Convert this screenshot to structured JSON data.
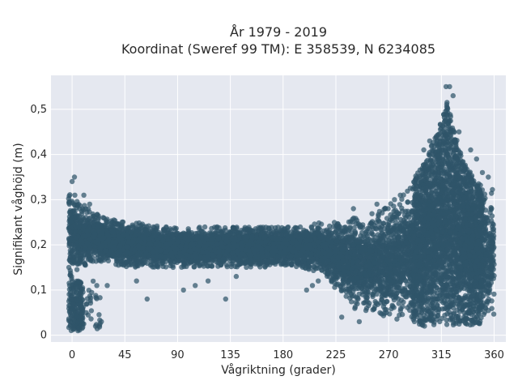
{
  "chart_data": {
    "type": "scatter",
    "title": "År 1979 - 2019",
    "subtitle": "Koordinat (Sweref 99 TM): E 358539, N 6234085",
    "xlabel": "Vågriktning (grader)",
    "ylabel": "Signifikant våghöjd (m)",
    "xlim": [
      -18,
      370
    ],
    "ylim": [
      -0.015,
      0.575
    ],
    "x_ticks": [
      0,
      45,
      90,
      135,
      180,
      225,
      270,
      315,
      360
    ],
    "x_tick_labels": [
      "0",
      "45",
      "90",
      "135",
      "180",
      "225",
      "270",
      "315",
      "360"
    ],
    "y_ticks": [
      0,
      0.1,
      0.2,
      0.3,
      0.4,
      0.5
    ],
    "y_tick_labels": [
      "0",
      "0,1",
      "0,2",
      "0,3",
      "0,4",
      "0,5"
    ],
    "grid": true,
    "marker_color": "#2f5569",
    "background_color": "#e5e8f0",
    "band": {
      "x": [
        0,
        5,
        10,
        15,
        20,
        30,
        45,
        60,
        75,
        90,
        105,
        120,
        135,
        150,
        165,
        180,
        195,
        210,
        225,
        240,
        255,
        270,
        285,
        300,
        305,
        310,
        315,
        320,
        325,
        330,
        335,
        340,
        345,
        350,
        355,
        360
      ],
      "low": [
        0.12,
        0.14,
        0.15,
        0.16,
        0.16,
        0.16,
        0.15,
        0.15,
        0.15,
        0.15,
        0.15,
        0.15,
        0.15,
        0.15,
        0.15,
        0.15,
        0.15,
        0.14,
        0.1,
        0.06,
        0.05,
        0.04,
        0.03,
        0.02,
        0.02,
        0.02,
        0.02,
        0.02,
        0.02,
        0.02,
        0.02,
        0.02,
        0.02,
        0.02,
        0.02,
        0.02
      ],
      "high": [
        0.33,
        0.3,
        0.29,
        0.28,
        0.27,
        0.26,
        0.25,
        0.25,
        0.24,
        0.24,
        0.24,
        0.24,
        0.24,
        0.24,
        0.24,
        0.24,
        0.24,
        0.25,
        0.25,
        0.26,
        0.27,
        0.29,
        0.32,
        0.38,
        0.41,
        0.44,
        0.48,
        0.52,
        0.46,
        0.42,
        0.39,
        0.36,
        0.34,
        0.33,
        0.32,
        0.33
      ]
    },
    "cluster_low_north": {
      "x_range": [
        -3,
        24
      ],
      "y_range": [
        0.01,
        0.12
      ]
    },
    "outliers": [
      {
        "x": 2,
        "y": 0.35
      },
      {
        "x": 0,
        "y": 0.34
      },
      {
        "x": 10,
        "y": 0.31
      },
      {
        "x": 15,
        "y": 0.29
      },
      {
        "x": 64,
        "y": 0.08
      },
      {
        "x": 95,
        "y": 0.1
      },
      {
        "x": 105,
        "y": 0.11
      },
      {
        "x": 116,
        "y": 0.12
      },
      {
        "x": 131,
        "y": 0.08
      },
      {
        "x": 140,
        "y": 0.13
      },
      {
        "x": 200,
        "y": 0.1
      },
      {
        "x": 205,
        "y": 0.11
      },
      {
        "x": 210,
        "y": 0.12
      },
      {
        "x": 230,
        "y": 0.04
      },
      {
        "x": 245,
        "y": 0.03
      },
      {
        "x": 300,
        "y": 0.41
      },
      {
        "x": 305,
        "y": 0.43
      },
      {
        "x": 322,
        "y": 0.55
      },
      {
        "x": 319,
        "y": 0.55
      },
      {
        "x": 325,
        "y": 0.53
      },
      {
        "x": 330,
        "y": 0.45
      },
      {
        "x": 340,
        "y": 0.41
      },
      {
        "x": 345,
        "y": 0.39
      },
      {
        "x": 350,
        "y": 0.36
      },
      {
        "x": 355,
        "y": 0.35
      },
      {
        "x": 280,
        "y": 0.31
      },
      {
        "x": 275,
        "y": 0.3
      },
      {
        "x": 260,
        "y": 0.29
      },
      {
        "x": 240,
        "y": 0.28
      },
      {
        "x": 30,
        "y": 0.11
      },
      {
        "x": 55,
        "y": 0.12
      },
      {
        "x": 12,
        "y": 0.05
      },
      {
        "x": 20,
        "y": 0.02
      },
      {
        "x": 25,
        "y": 0.03
      },
      {
        "x": 5,
        "y": 0.01
      }
    ]
  }
}
